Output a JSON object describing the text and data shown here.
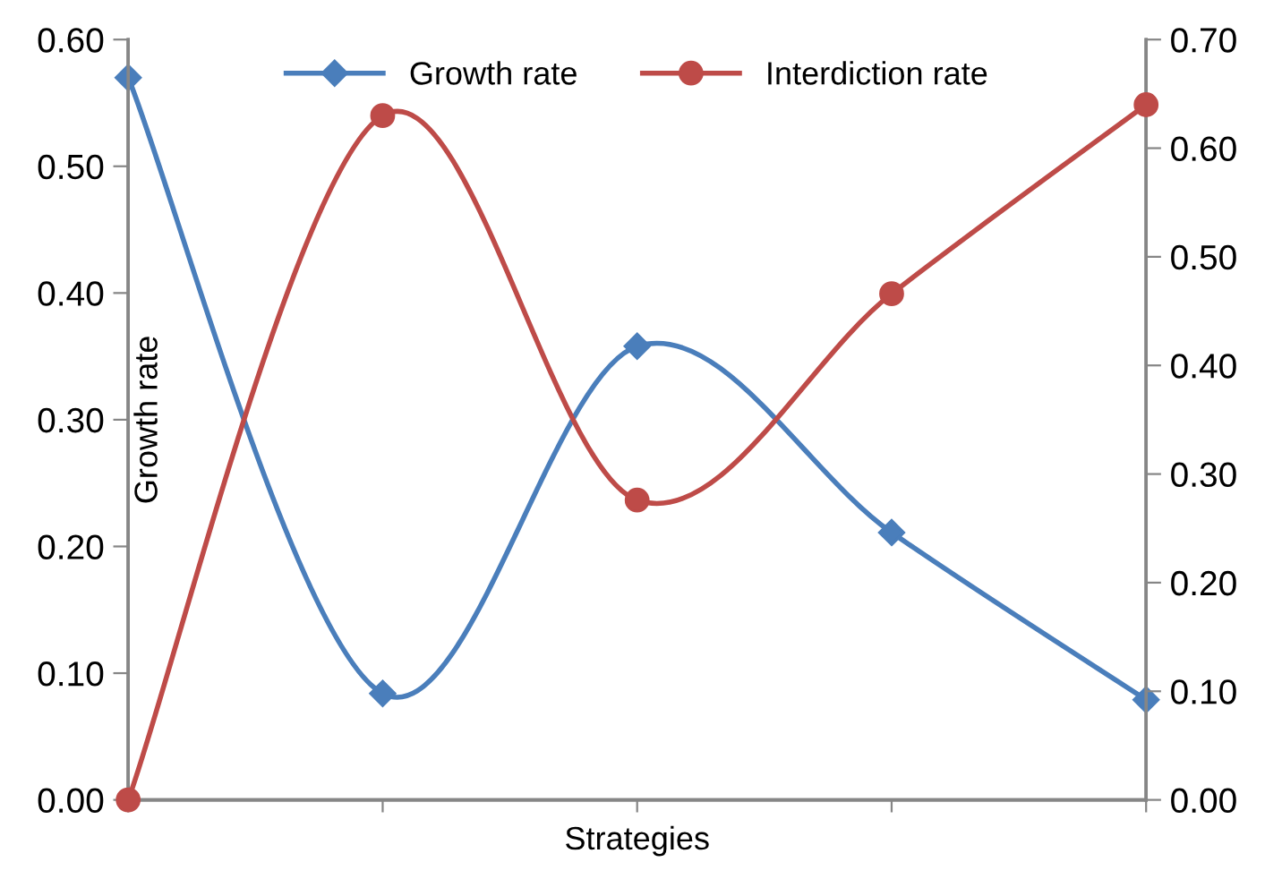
{
  "chart_data": {
    "type": "line",
    "xlabel": "Strategies",
    "ylabel": "Growth rate",
    "categories": [
      null,
      null,
      null,
      null,
      null
    ],
    "series": [
      {
        "name": "Growth rate",
        "color": "#4a7ebb",
        "marker": "diamond",
        "values": [
          0.57,
          0.084,
          0.358,
          0.211,
          0.079
        ]
      },
      {
        "name": "Interdiction rate",
        "color": "#be4b48",
        "marker": "circle",
        "axis": "y2",
        "values": [
          0.0,
          0.63,
          0.276,
          0.466,
          0.64
        ]
      }
    ],
    "ylim": [
      0,
      0.6
    ],
    "yticks": [
      {
        "value": 0,
        "label": "0.00"
      },
      {
        "value": 0.1,
        "label": "0.10"
      },
      {
        "value": 0.2,
        "label": "0.20"
      },
      {
        "value": 0.3,
        "label": "0.30"
      },
      {
        "value": 0.4,
        "label": "0.40"
      },
      {
        "value": 0.5,
        "label": "0.50"
      },
      {
        "value": 0.6,
        "label": "0.60"
      }
    ],
    "y2lim": [
      0,
      0.7
    ],
    "y2ticks": [
      {
        "value": 0,
        "label": "0.00"
      },
      {
        "value": 0.1,
        "label": "0.10"
      },
      {
        "value": 0.2,
        "label": "0.20"
      },
      {
        "value": 0.3,
        "label": "0.30"
      },
      {
        "value": 0.4,
        "label": "0.40"
      },
      {
        "value": 0.5,
        "label": "0.50"
      },
      {
        "value": 0.6,
        "label": "0.60"
      },
      {
        "value": 0.7,
        "label": "0.70"
      }
    ],
    "grid": false,
    "legend": "top",
    "line_style": "solid"
  }
}
